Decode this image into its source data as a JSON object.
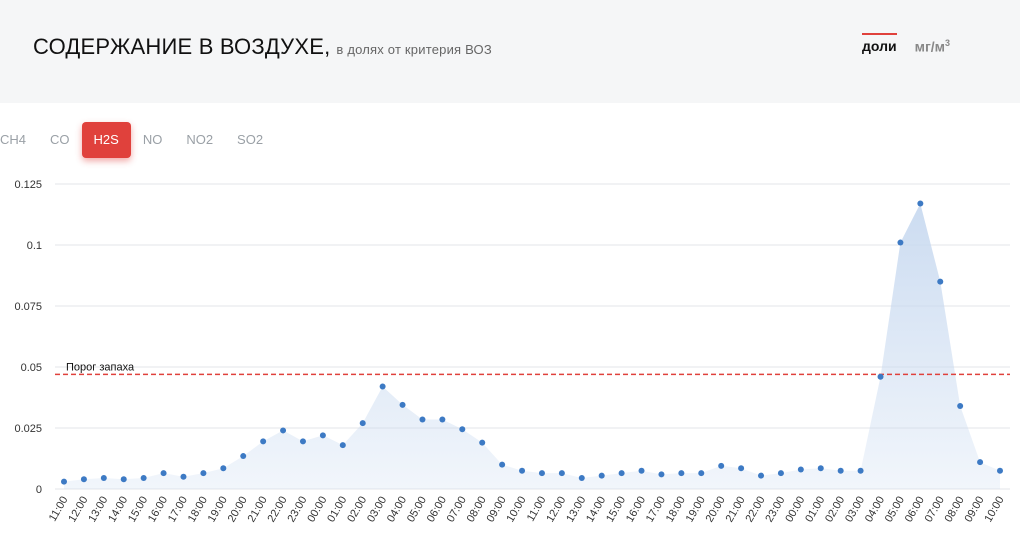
{
  "header": {
    "title": "СОДЕРЖАНИЕ В ВОЗДУХЕ,",
    "subtitle": "в долях от критерия ВОЗ",
    "units": [
      {
        "label": "доли",
        "sup": "",
        "active": true
      },
      {
        "label": "мг/м",
        "sup": "3",
        "active": false
      }
    ]
  },
  "tabs": [
    {
      "label": "CH4",
      "active": false
    },
    {
      "label": "CO",
      "active": false
    },
    {
      "label": "H2S",
      "active": true
    },
    {
      "label": "NO",
      "active": false
    },
    {
      "label": "NO2",
      "active": false
    },
    {
      "label": "SO2",
      "active": false
    }
  ],
  "colors": {
    "accent": "#e0413c",
    "point": "#3d7ac4",
    "area": "#c9daf0",
    "threshold": "#e0413c"
  },
  "chart_data": {
    "type": "area",
    "ylim": [
      0,
      0.125
    ],
    "yticks": [
      0,
      0.025,
      0.05,
      0.075,
      0.1,
      0.125
    ],
    "ytick_labels": [
      "0",
      "0.025",
      "0.05",
      "0.075",
      "0.1",
      "0.125"
    ],
    "grid": true,
    "threshold": {
      "value": 0.047,
      "label": "Порог запаха"
    },
    "x": [
      "11:00",
      "12:00",
      "13:00",
      "14:00",
      "15:00",
      "16:00",
      "17:00",
      "18:00",
      "19:00",
      "20:00",
      "21:00",
      "22:00",
      "23:00",
      "00:00",
      "01:00",
      "02:00",
      "03:00",
      "04:00",
      "05:00",
      "06:00",
      "07:00",
      "08:00",
      "09:00",
      "10:00",
      "11:00",
      "12:00",
      "13:00",
      "14:00",
      "15:00",
      "16:00",
      "17:00",
      "18:00",
      "19:00",
      "20:00",
      "21:00",
      "22:00",
      "23:00",
      "00:00",
      "01:00",
      "02:00",
      "03:00",
      "04:00",
      "05:00",
      "06:00",
      "07:00",
      "08:00",
      "09:00",
      "10:00"
    ],
    "values": [
      0.003,
      0.004,
      0.0045,
      0.004,
      0.0045,
      0.0065,
      0.005,
      0.0065,
      0.0085,
      0.0135,
      0.0195,
      0.024,
      0.0195,
      0.022,
      0.018,
      0.027,
      0.042,
      0.0345,
      0.0285,
      0.0285,
      0.0245,
      0.019,
      0.01,
      0.0075,
      0.0065,
      0.0065,
      0.0045,
      0.0055,
      0.0065,
      0.0075,
      0.006,
      0.0065,
      0.0065,
      0.0095,
      0.0085,
      0.0055,
      0.0065,
      0.008,
      0.0085,
      0.0075,
      0.0075,
      0.046,
      0.101,
      0.117,
      0.085,
      0.034,
      0.011,
      0.0075
    ]
  }
}
